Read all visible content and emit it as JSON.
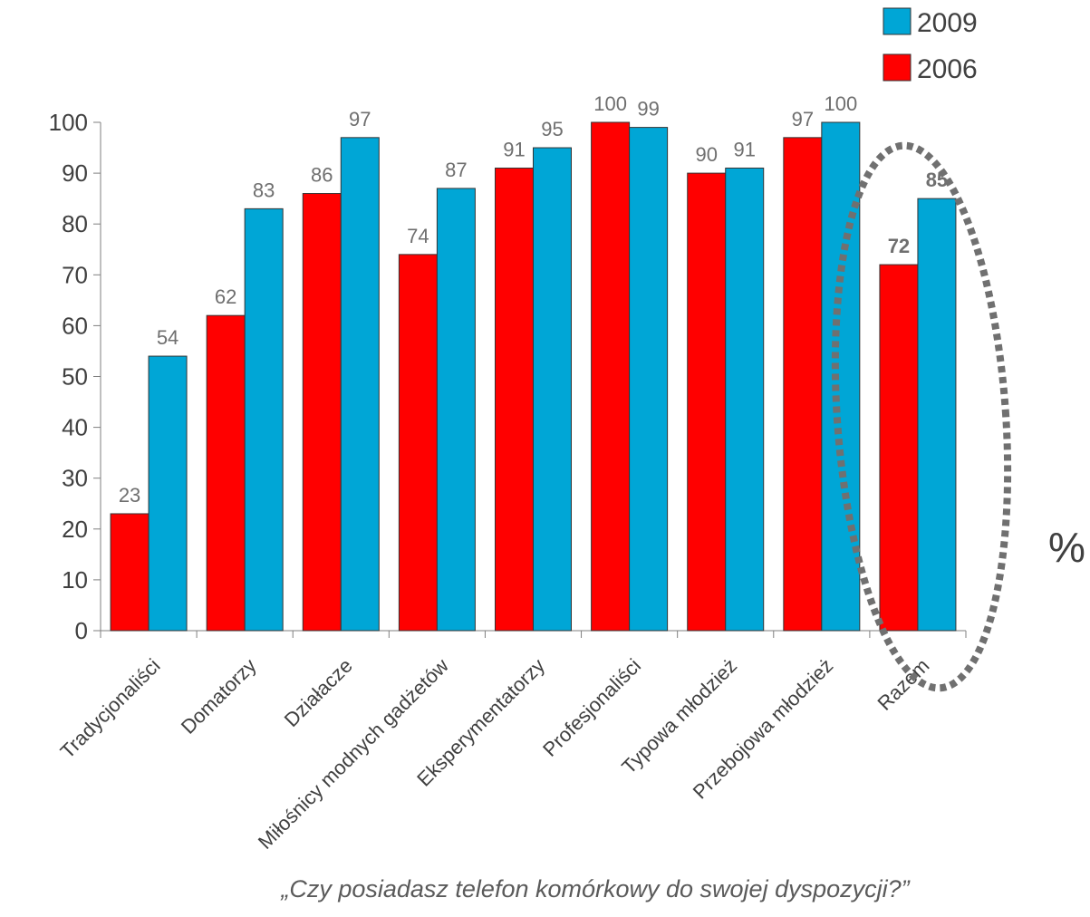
{
  "chart_data": {
    "type": "bar",
    "categories": [
      "Tradycjonaliści",
      "Domatorzy",
      "Działacze",
      "Miłośnicy modnych gadżetów",
      "Eksperymentatorzy",
      "Profesjonaliści",
      "Typowa młodzież",
      "Przebojowa młodzież",
      "Razem"
    ],
    "series": [
      {
        "name": "2006",
        "values": [
          23,
          62,
          86,
          74,
          91,
          100,
          90,
          97,
          72
        ],
        "color": "#ff0000"
      },
      {
        "name": "2009",
        "values": [
          54,
          83,
          97,
          87,
          95,
          99,
          91,
          100,
          85
        ],
        "color": "#00a6d6"
      }
    ],
    "legend": [
      "2009",
      "2006"
    ],
    "legend_position": "top-right",
    "y_ticks": [
      "0",
      "10",
      "20",
      "30",
      "40",
      "50",
      "60",
      "70",
      "80",
      "90",
      "100"
    ],
    "ylim": [
      0,
      100
    ],
    "unit": "%",
    "highlighted_category": "Razem",
    "caption": "„Czy posiadasz telefon komórkowy do swojej dyspozycji?”",
    "grid": false
  }
}
